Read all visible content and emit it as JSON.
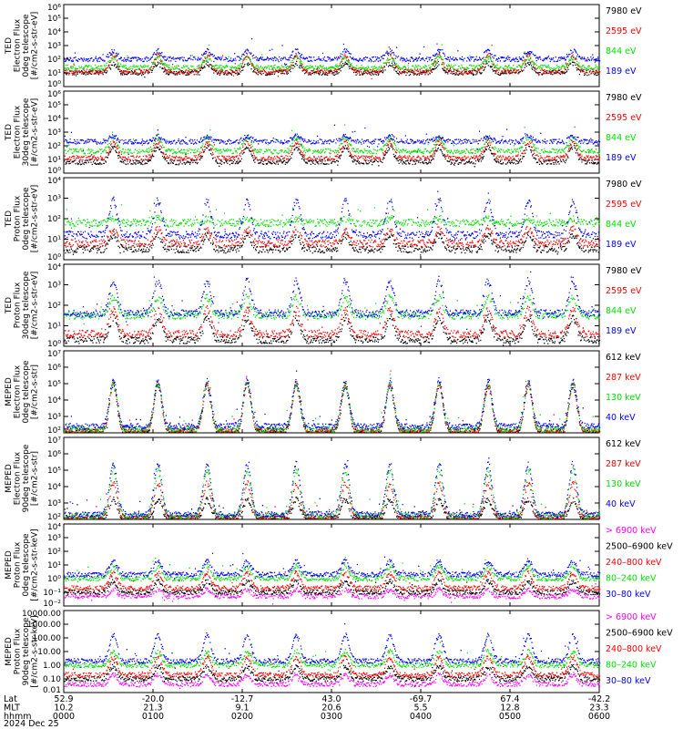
{
  "colors": {
    "blue": "#0000ff",
    "red": "#ff0000",
    "green": "#00e000",
    "black": "#000000",
    "magenta": "#ff00ff"
  },
  "chart_data": [
    {
      "type": "scatter",
      "ylabel": [
        "TED",
        "Electron Flux",
        "0deg telescope",
        "[#/cm2-s-str-eV]"
      ],
      "log_scale": true,
      "ylim_exp": [
        0,
        6
      ],
      "tick_labels": [
        "10⁶",
        "10⁵",
        "10⁴",
        "10³",
        "10²",
        "10¹",
        "10⁰"
      ],
      "legend": [
        "7980 eV",
        "2595 eV",
        "844 eV",
        "189 eV"
      ],
      "series_colors": [
        "black",
        "red",
        "green",
        "blue"
      ],
      "series": [
        {
          "name": "7980 eV",
          "base": 1.0,
          "peak": 1.7
        },
        {
          "name": "2595 eV",
          "base": 1.1,
          "peak": 2.3
        },
        {
          "name": "844 eV",
          "base": 1.4,
          "peak": 2.1
        },
        {
          "name": "189 eV",
          "base": 2.0,
          "peak": 2.6
        }
      ]
    },
    {
      "type": "scatter",
      "ylabel": [
        "TED",
        "Electron Flux",
        "30deg telescope",
        "[#/cm2-s-str-eV]"
      ],
      "log_scale": true,
      "ylim_exp": [
        0,
        6
      ],
      "tick_labels": [
        "10⁶",
        "10⁵",
        "10⁴",
        "10³",
        "10²",
        "10¹",
        "10⁰"
      ],
      "legend": [
        "7980 eV",
        "2595 eV",
        "844 eV",
        "189 eV"
      ],
      "series_colors": [
        "black",
        "red",
        "green",
        "blue"
      ],
      "series": [
        {
          "name": "7980 eV",
          "base": 0.8,
          "peak": 1.9
        },
        {
          "name": "2595 eV",
          "base": 1.1,
          "peak": 2.3
        },
        {
          "name": "844 eV",
          "base": 1.6,
          "peak": 2.6
        },
        {
          "name": "189 eV",
          "base": 2.3,
          "peak": 2.7
        }
      ]
    },
    {
      "type": "scatter",
      "ylabel": [
        "TED",
        "Proton Flux",
        "0deg telescope",
        "[#/cm2-s-str-eV]"
      ],
      "log_scale": true,
      "ylim_exp": [
        0,
        4
      ],
      "tick_labels": [
        "10⁴",
        "10³",
        "10²",
        "10¹",
        "10⁰"
      ],
      "legend": [
        "7980 eV",
        "2595 eV",
        "844 eV",
        "189 eV"
      ],
      "series_colors": [
        "black",
        "red",
        "green",
        "blue"
      ],
      "series": [
        {
          "name": "7980 eV",
          "base": 0.5,
          "peak": 1.2
        },
        {
          "name": "2595 eV",
          "base": 0.8,
          "peak": 1.5
        },
        {
          "name": "844 eV",
          "base": 1.8,
          "peak": 2.0
        },
        {
          "name": "189 eV",
          "base": 1.2,
          "peak": 2.9
        }
      ]
    },
    {
      "type": "scatter",
      "ylabel": [
        "TED",
        "Proton Flux",
        "30deg telescope",
        "[#/cm2-s-str-eV]"
      ],
      "log_scale": true,
      "ylim_exp": [
        0,
        4
      ],
      "tick_labels": [
        "10⁴",
        "10³",
        "10²",
        "10¹",
        "10⁰"
      ],
      "legend": [
        "7980 eV",
        "2595 eV",
        "844 eV",
        "189 eV"
      ],
      "series_colors": [
        "black",
        "red",
        "green",
        "blue"
      ],
      "series": [
        {
          "name": "7980 eV",
          "base": 0.3,
          "peak": 1.4
        },
        {
          "name": "2595 eV",
          "base": 0.6,
          "peak": 1.8
        },
        {
          "name": "844 eV",
          "base": 1.5,
          "peak": 2.4
        },
        {
          "name": "189 eV",
          "base": 1.6,
          "peak": 3.2
        }
      ]
    },
    {
      "type": "scatter",
      "ylabel": [
        "MEPED",
        "Electron Flux",
        "0deg telescope",
        "[#/cm2-s-str]"
      ],
      "log_scale": true,
      "ylim_exp": [
        2,
        7
      ],
      "tick_labels": [
        "10⁷",
        "10⁶",
        "10⁵",
        "10⁴",
        "10³",
        "10²"
      ],
      "legend": [
        "612 keV",
        "287 keV",
        "130 keV",
        "40 keV"
      ],
      "series_colors": [
        "black",
        "red",
        "green",
        "blue"
      ],
      "series": [
        {
          "name": "612 keV",
          "base": 2.05,
          "peak": 4.9
        },
        {
          "name": "287 keV",
          "base": 2.1,
          "peak": 5.0
        },
        {
          "name": "130 keV",
          "base": 2.2,
          "peak": 5.0
        },
        {
          "name": "40 keV",
          "base": 2.4,
          "peak": 5.2
        }
      ]
    },
    {
      "type": "scatter",
      "ylabel": [
        "MEPED",
        "Electron Flux",
        "90deg telescope",
        "[#/cm2-s-str]"
      ],
      "log_scale": true,
      "ylim_exp": [
        2,
        7
      ],
      "tick_labels": [
        "10⁷",
        "10⁶",
        "10⁵",
        "10⁴",
        "10³",
        "10²"
      ],
      "legend": [
        "612 keV",
        "287 keV",
        "130 keV",
        "40 keV"
      ],
      "series_colors": [
        "black",
        "red",
        "green",
        "blue"
      ],
      "series": [
        {
          "name": "612 keV",
          "base": 2.05,
          "peak": 3.2
        },
        {
          "name": "287 keV",
          "base": 2.1,
          "peak": 4.2
        },
        {
          "name": "130 keV",
          "base": 2.2,
          "peak": 5.0
        },
        {
          "name": "40 keV",
          "base": 2.3,
          "peak": 5.4
        }
      ]
    },
    {
      "type": "scatter",
      "ylabel": [
        "MEPED",
        "Proton Flux",
        "0deg telescope",
        "[#/cm2-s-str-keV]"
      ],
      "log_scale": true,
      "ylim_exp": [
        -2,
        4
      ],
      "tick_labels": [
        "10⁴",
        "10³",
        "10²",
        "10¹",
        "10⁰",
        "10⁻¹",
        "10⁻²"
      ],
      "legend": [
        "> 6900 keV",
        "2500–6900 keV",
        "240–800 keV",
        "80–240 keV",
        "30–80 keV"
      ],
      "series_colors": [
        "magenta",
        "black",
        "red",
        "green",
        "blue"
      ],
      "series": [
        {
          "name": "> 6900 keV",
          "base": -1.3,
          "peak": -0.8
        },
        {
          "name": "2500–6900 keV",
          "base": -1.0,
          "peak": -0.2
        },
        {
          "name": "240–800 keV",
          "base": -0.7,
          "peak": 0.4
        },
        {
          "name": "80–240 keV",
          "base": 0.0,
          "peak": 0.9
        },
        {
          "name": "30–80 keV",
          "base": 0.3,
          "peak": 1.3
        }
      ]
    },
    {
      "type": "scatter",
      "ylabel": [
        "MEPED",
        "Proton Flux",
        "90deg telescope",
        "[#/cm2-s-str-keV]"
      ],
      "log_scale": true,
      "ylim_exp": [
        -2,
        4
      ],
      "tick_labels": [
        "10000.00",
        "1000.00",
        "100.00",
        "10.00",
        "1.00",
        "0.10",
        "0.01"
      ],
      "legend": [
        "> 6900 keV",
        "2500–6900 keV",
        "240–800 keV",
        "80–240 keV",
        "30–80 keV"
      ],
      "series_colors": [
        "magenta",
        "black",
        "red",
        "green",
        "blue"
      ],
      "series": [
        {
          "name": "> 6900 keV",
          "base": -1.4,
          "peak": -0.7
        },
        {
          "name": "2500–6900 keV",
          "base": -1.0,
          "peak": -0.1
        },
        {
          "name": "240–800 keV",
          "base": -0.7,
          "peak": 0.6
        },
        {
          "name": "80–240 keV",
          "base": 0.0,
          "peak": 1.0
        },
        {
          "name": "30–80 keV",
          "base": 0.3,
          "peak": 2.2
        }
      ]
    }
  ],
  "x_axis": {
    "rows": [
      {
        "label": "Lat",
        "values": [
          "52.9",
          "-20.0",
          "-12.7",
          "43.0",
          "-69.7",
          "67.4",
          "-42.2"
        ]
      },
      {
        "label": "MLT",
        "values": [
          "10.2",
          "21.3",
          "9.1",
          "20.6",
          "5.5",
          "12.8",
          "23.3"
        ]
      },
      {
        "label": "hhmm",
        "values": [
          "0000",
          "0100",
          "0200",
          "0300",
          "0400",
          "0500",
          "0600"
        ]
      }
    ],
    "date": "2024 Dec 25",
    "hours": [
      0,
      6
    ]
  },
  "event_hours": [
    0.55,
    1.05,
    1.6,
    2.05,
    2.6,
    3.15,
    3.65,
    4.2,
    4.75,
    5.2,
    5.7
  ]
}
